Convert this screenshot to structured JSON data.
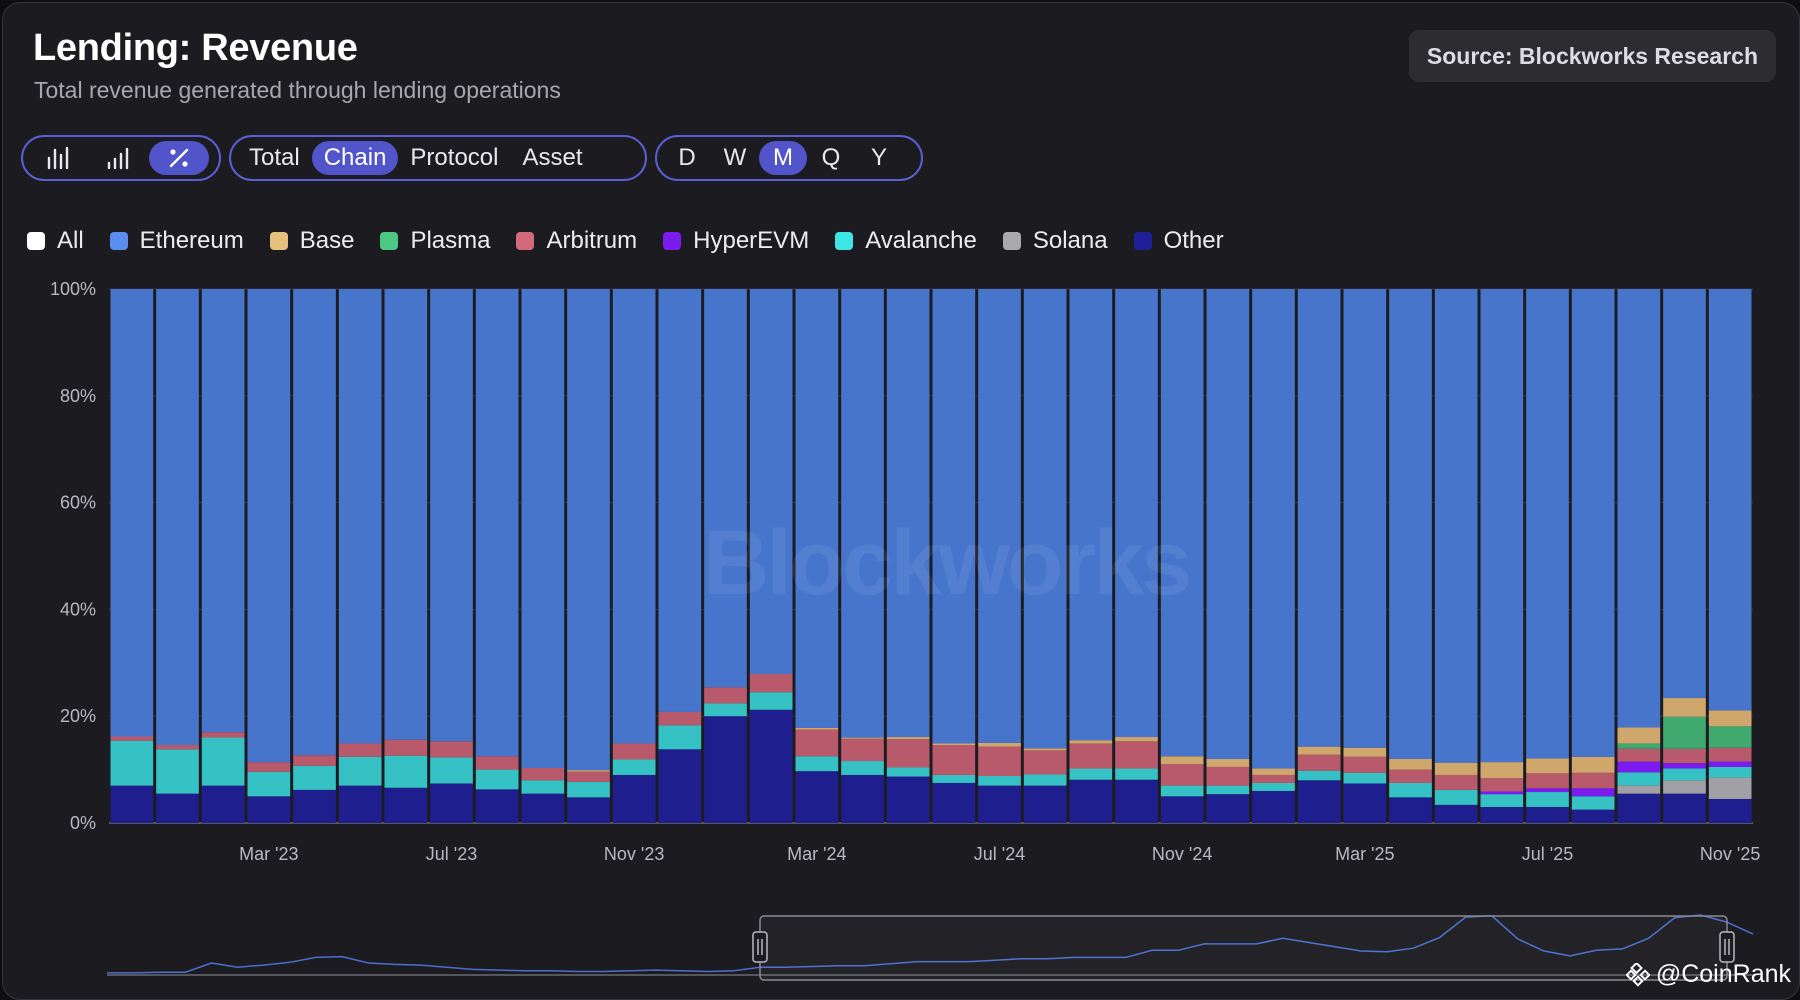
{
  "header": {
    "title": "Lending: Revenue",
    "subtitle": "Total revenue generated through lending operations",
    "source": "Source: Blockworks Research"
  },
  "controls": {
    "chart_type_icons": [
      "bar-chart-icon",
      "cumulative-bar-icon",
      "percent-icon"
    ],
    "chart_type_active": 2,
    "breakdown": [
      "Total",
      "Chain",
      "Protocol",
      "Asset"
    ],
    "breakdown_active": 1,
    "period": [
      "D",
      "W",
      "M",
      "Q",
      "Y"
    ],
    "period_active": 2
  },
  "legend": [
    {
      "label": "All",
      "color": "#ffffff"
    },
    {
      "label": "Ethereum",
      "color": "#5b8def"
    },
    {
      "label": "Base",
      "color": "#e8c07d"
    },
    {
      "label": "Plasma",
      "color": "#4cc784"
    },
    {
      "label": "Arbitrum",
      "color": "#d36a7c"
    },
    {
      "label": "HyperEVM",
      "color": "#7a1cf0"
    },
    {
      "label": "Avalanche",
      "color": "#3ee6e6"
    },
    {
      "label": "Solana",
      "color": "#a9a9ae"
    },
    {
      "label": "Other",
      "color": "#1f1f9a"
    }
  ],
  "watermark": "Blockworks",
  "branding": "@CoinRank",
  "chart_data": {
    "type": "bar",
    "stacked": true,
    "percent": true,
    "ylim": [
      0,
      100
    ],
    "yticks": [
      "0%",
      "20%",
      "40%",
      "60%",
      "80%",
      "100%"
    ],
    "xtick_labels": [
      "Mar '23",
      "Jul '23",
      "Nov '23",
      "Mar '24",
      "Jul '24",
      "Nov '24",
      "Mar '25",
      "Jul '25",
      "Nov '25"
    ],
    "xtick_bar_index": [
      3,
      7,
      11,
      15,
      19,
      23,
      27,
      31,
      35
    ],
    "categories": [
      "Dec '22",
      "Jan '23",
      "Feb '23",
      "Mar '23",
      "Apr '23",
      "May '23",
      "Jun '23",
      "Jul '23",
      "Aug '23",
      "Sep '23",
      "Oct '23",
      "Nov '23",
      "Dec '23",
      "Jan '24",
      "Feb '24",
      "Mar '24",
      "Apr '24",
      "May '24",
      "Jun '24",
      "Jul '24",
      "Aug '24",
      "Sep '24",
      "Oct '24",
      "Nov '24",
      "Dec '24",
      "Jan '25",
      "Feb '25",
      "Mar '25",
      "Apr '25",
      "May '25",
      "Jun '25",
      "Jul '25",
      "Aug '25",
      "Sep '25",
      "Oct '25",
      "Nov '25"
    ],
    "series": [
      {
        "name": "Other",
        "color": "#1e1e8f",
        "values": [
          7,
          5.5,
          7,
          5,
          6.2,
          7,
          6.6,
          7.4,
          6.3,
          5.5,
          4.8,
          9,
          13.8,
          20,
          21.2,
          9.7,
          9,
          8.7,
          7.5,
          7,
          7,
          8.1,
          8.1,
          5,
          5.4,
          6,
          8,
          7.4,
          4.8,
          3.4,
          3,
          3,
          2.5,
          5.5,
          5.5,
          4.5
        ]
      },
      {
        "name": "Solana",
        "color": "#a0a0a6",
        "values": [
          0,
          0,
          0,
          0,
          0,
          0,
          0,
          0,
          0,
          0,
          0,
          0,
          0,
          0,
          0,
          0,
          0,
          0,
          0,
          0,
          0,
          0,
          0,
          0,
          0,
          0,
          0,
          0,
          0,
          0,
          0,
          0,
          0,
          1.5,
          2.5,
          4
        ]
      },
      {
        "name": "Avalanche",
        "color": "#36c2c4",
        "values": [
          8.4,
          8.3,
          9,
          4.6,
          4.5,
          5.4,
          6,
          4.9,
          3.7,
          2.5,
          2.9,
          2.9,
          4.5,
          2.4,
          3.3,
          2.8,
          2.6,
          1.7,
          1.5,
          1.8,
          2.1,
          2.1,
          2.1,
          2,
          1.6,
          1.5,
          1.8,
          2,
          2.7,
          2.8,
          2.4,
          2.8,
          2.5,
          2.5,
          2.2,
          2
        ]
      },
      {
        "name": "HyperEVM",
        "color": "#7a1cf0",
        "values": [
          0,
          0,
          0,
          0,
          0,
          0,
          0,
          0,
          0,
          0,
          0,
          0,
          0,
          0,
          0,
          0,
          0,
          0,
          0,
          0,
          0,
          0,
          0,
          0,
          0,
          0,
          0,
          0,
          0,
          0,
          0.5,
          0.7,
          1.5,
          2,
          1,
          1
        ]
      },
      {
        "name": "Arbitrum",
        "color": "#b95a6c",
        "values": [
          0.8,
          0.8,
          1,
          1.8,
          2,
          2.5,
          3,
          3,
          2.5,
          2.3,
          1.9,
          3,
          2.5,
          3,
          3.4,
          5,
          4.2,
          5.3,
          5.6,
          5.5,
          4.5,
          4.7,
          5.1,
          4,
          3.5,
          1.5,
          3,
          3,
          2.5,
          2.8,
          2.5,
          2.8,
          2.9,
          2.4,
          2.7,
          2.6
        ]
      },
      {
        "name": "Plasma",
        "color": "#3fa96e",
        "values": [
          0,
          0,
          0,
          0,
          0,
          0,
          0,
          0,
          0,
          0,
          0,
          0,
          0,
          0,
          0,
          0,
          0,
          0,
          0,
          0,
          0,
          0,
          0,
          0,
          0,
          0,
          0,
          0,
          0,
          0,
          0,
          0,
          0,
          1,
          6,
          4
        ]
      },
      {
        "name": "Base",
        "color": "#cfa76c",
        "values": [
          0,
          0,
          0,
          0,
          0,
          0,
          0,
          0,
          0,
          0,
          0.3,
          0,
          0,
          0,
          0,
          0.3,
          0.2,
          0.4,
          0.3,
          0.7,
          0.4,
          0.6,
          0.8,
          1.5,
          1.5,
          1.2,
          1.5,
          1.7,
          2,
          2.3,
          3,
          2.8,
          3,
          3,
          3.5,
          3
        ]
      },
      {
        "name": "Ethereum",
        "color": "#4775cc",
        "values": [
          83.8,
          85.4,
          83,
          88.6,
          87.3,
          85.1,
          84.4,
          84.7,
          87.5,
          89.7,
          90.1,
          85.1,
          79.2,
          74.6,
          72.1,
          82.2,
          84,
          83.9,
          85.1,
          85,
          86,
          84.5,
          83.9,
          87.5,
          88,
          89.8,
          85.7,
          85.9,
          88,
          88.7,
          88.6,
          87.9,
          87.6,
          82.1,
          76.6,
          78.9
        ]
      }
    ],
    "navigator": {
      "line_values": [
        0.3,
        0.3,
        0.4,
        0.4,
        1.7,
        1.1,
        1.4,
        1.8,
        2.5,
        2.6,
        1.7,
        1.5,
        1.4,
        1.1,
        0.8,
        0.7,
        0.6,
        0.6,
        0.5,
        0.5,
        0.6,
        0.7,
        0.6,
        0.5,
        0.6,
        1.1,
        1.1,
        1.2,
        1.3,
        1.3,
        1.6,
        1.9,
        1.9,
        1.9,
        2.1,
        2.3,
        2.3,
        2.5,
        2.5,
        2.5,
        3.5,
        3.5,
        4.4,
        4.4,
        4.4,
        5.2,
        4.6,
        4.0,
        3.4,
        3.3,
        3.8,
        5.3,
        8.2,
        8.4,
        5.1,
        3.4,
        2.7,
        3.5,
        3.7,
        5.2,
        8.1,
        8.5,
        7.5,
        5.8
      ]
    }
  }
}
